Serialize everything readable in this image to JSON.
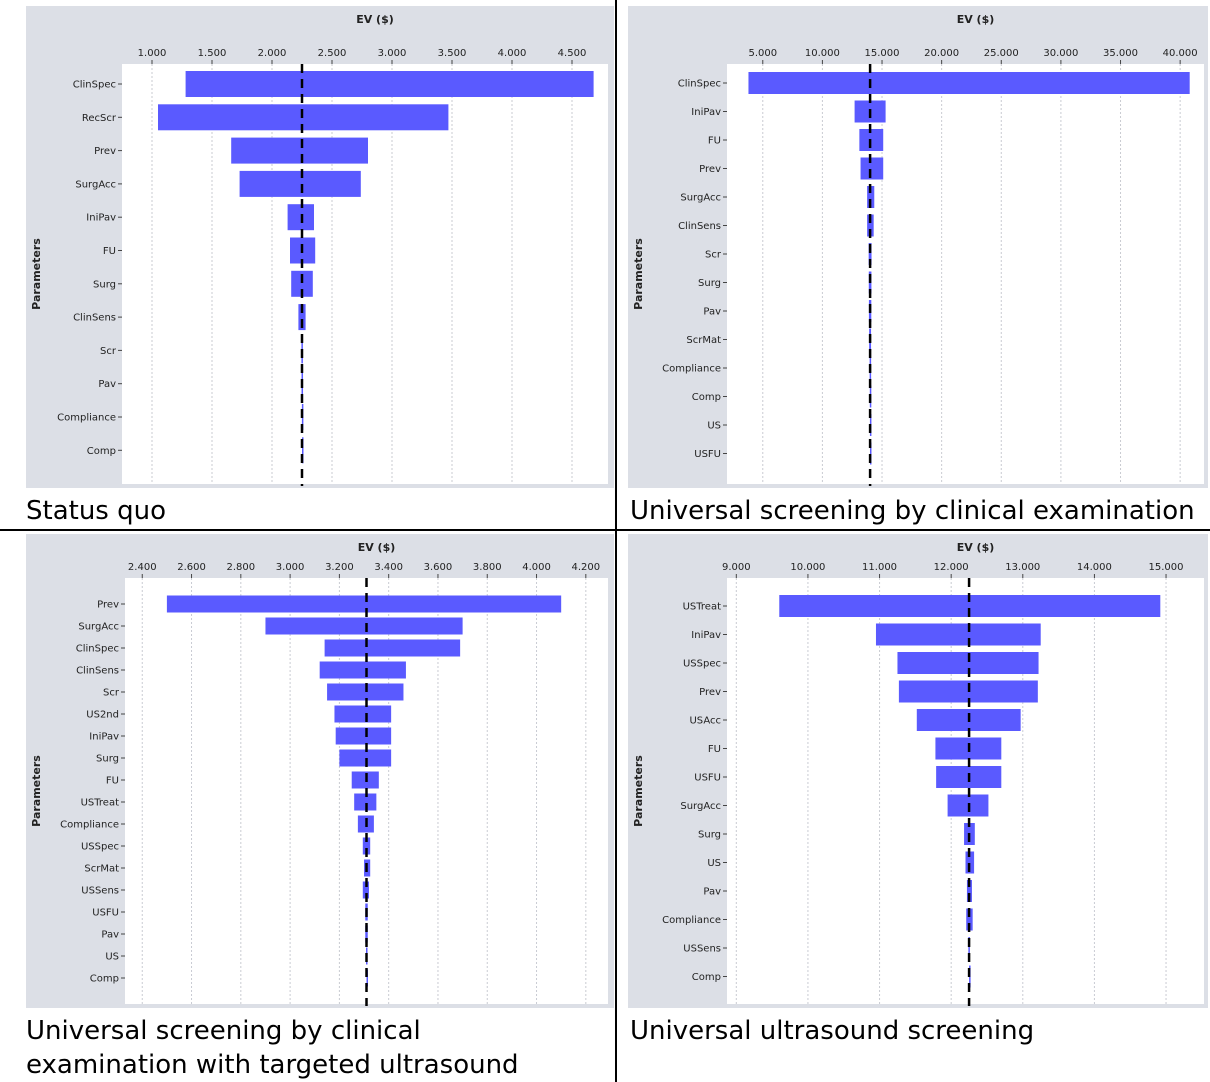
{
  "chart_data": [
    {
      "type": "bar",
      "subtype": "tornado",
      "title": "Status quo",
      "xlabel": "EV ($)",
      "ylabel": "Parameters",
      "xlim": [
        750,
        4800
      ],
      "ticks": [
        1000,
        1500,
        2000,
        2500,
        3000,
        3500,
        4000,
        4500
      ],
      "tick_labels": [
        "1.000",
        "1.500",
        "2.000",
        "2.500",
        "3.000",
        "3.500",
        "4.000",
        "4.500"
      ],
      "baseline": 2250,
      "categories": [
        "ClinSpec",
        "RecScr",
        "Prev",
        "SurgAcc",
        "IniPav",
        "FU",
        "Surg",
        "ClinSens",
        "Scr",
        "Pav",
        "Compliance",
        "Comp"
      ],
      "low": [
        1280,
        1050,
        1660,
        1730,
        2130,
        2150,
        2160,
        2220,
        2245,
        2246,
        2249,
        2250
      ],
      "high": [
        4680,
        3470,
        2800,
        2740,
        2350,
        2360,
        2340,
        2280,
        2255,
        2254,
        2251,
        2250
      ],
      "grid": true
    },
    {
      "type": "bar",
      "subtype": "tornado",
      "title": "Universal screening by clinical examination",
      "xlabel": "EV ($)",
      "ylabel": "Parameters",
      "xlim": [
        2000,
        42000
      ],
      "ticks": [
        5000,
        10000,
        15000,
        20000,
        25000,
        30000,
        35000,
        40000
      ],
      "tick_labels": [
        "5.000",
        "10.000",
        "15.000",
        "20.000",
        "25.000",
        "30.000",
        "35.000",
        "40.000"
      ],
      "baseline": 14000,
      "categories": [
        "ClinSpec",
        "IniPav",
        "FU",
        "Prev",
        "SurgAcc",
        "ClinSens",
        "Scr",
        "Surg",
        "Pav",
        "ScrMat",
        "Compliance",
        "Comp",
        "US",
        "USFU"
      ],
      "low": [
        3800,
        12700,
        13100,
        13200,
        13750,
        13750,
        13880,
        13890,
        13900,
        13920,
        13960,
        13975,
        13985,
        13990
      ],
      "high": [
        40800,
        15300,
        15100,
        15100,
        14350,
        14300,
        14120,
        14110,
        14100,
        14080,
        14040,
        14025,
        14015,
        14010
      ],
      "grid": true
    },
    {
      "type": "bar",
      "subtype": "tornado",
      "title": "Universal screening by clinical examination with targeted ultrasound",
      "xlabel": "EV ($)",
      "ylabel": "Parameters",
      "xlim": [
        2330,
        4290
      ],
      "ticks": [
        2400,
        2600,
        2800,
        3000,
        3200,
        3400,
        3600,
        3800,
        4000,
        4200
      ],
      "tick_labels": [
        "2.400",
        "2.600",
        "2.800",
        "3.000",
        "3.200",
        "3.400",
        "3.600",
        "3.800",
        "4.000",
        "4.200"
      ],
      "baseline": 3310,
      "categories": [
        "Prev",
        "SurgAcc",
        "ClinSpec",
        "ClinSens",
        "Scr",
        "US2nd",
        "IniPav",
        "Surg",
        "FU",
        "USTreat",
        "Compliance",
        "USSpec",
        "ScrMat",
        "USSens",
        "USFU",
        "Pav",
        "US",
        "Comp"
      ],
      "low": [
        2500,
        2900,
        3140,
        3120,
        3150,
        3180,
        3185,
        3200,
        3250,
        3260,
        3275,
        3295,
        3300,
        3295,
        3305,
        3305,
        3308,
        3310
      ],
      "high": [
        4100,
        3700,
        3690,
        3470,
        3460,
        3410,
        3410,
        3410,
        3360,
        3350,
        3340,
        3325,
        3325,
        3320,
        3315,
        3315,
        3312,
        3310
      ],
      "grid": true
    },
    {
      "type": "bar",
      "subtype": "tornado",
      "title": "Universal ultrasound screening",
      "xlabel": "EV ($)",
      "ylabel": "Parameters",
      "xlim": [
        8870,
        15530
      ],
      "ticks": [
        9000,
        10000,
        11000,
        12000,
        13000,
        14000,
        15000
      ],
      "tick_labels": [
        "9.000",
        "10.000",
        "11.000",
        "12.000",
        "13.000",
        "14.000",
        "15.000"
      ],
      "baseline": 12250,
      "categories": [
        "USTreat",
        "IniPav",
        "USSpec",
        "Prev",
        "USAcc",
        "FU",
        "USFU",
        "SurgAcc",
        "Surg",
        "US",
        "Pav",
        "Compliance",
        "USSens",
        "Comp"
      ],
      "low": [
        9600,
        10950,
        11250,
        11270,
        11520,
        11780,
        11790,
        11950,
        12180,
        12200,
        12220,
        12210,
        12240,
        12250
      ],
      "high": [
        14920,
        13250,
        13220,
        13210,
        12970,
        12700,
        12700,
        12520,
        12330,
        12320,
        12290,
        12300,
        12260,
        12250
      ],
      "grid": true
    }
  ],
  "colors": {
    "bar": "#5a5aff",
    "frame_background": "#dcdfe6",
    "plot_background": "#ffffff",
    "gridline": "#c9cbd2",
    "baseline": "#000000"
  }
}
